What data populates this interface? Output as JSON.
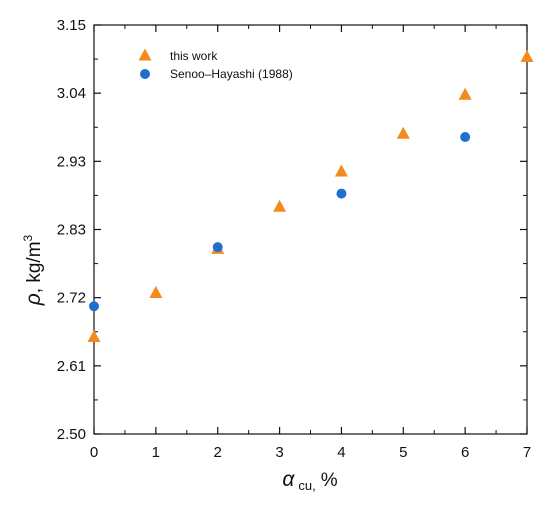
{
  "chart_data": {
    "type": "scatter",
    "xlabel": {
      "symbol": "α",
      "subscript": "cu,",
      "unit": "%"
    },
    "ylabel": {
      "symbol": "ρ",
      "unit_prefix": ", kg/m",
      "superscript": "3"
    },
    "xlim": [
      0,
      7
    ],
    "ylim": [
      2.5,
      3.15
    ],
    "x_ticks": [
      "0",
      "1",
      "2",
      "3",
      "4",
      "5",
      "6",
      "7"
    ],
    "y_ticks": [
      "2.50",
      "2.61",
      "2.72",
      "2.83",
      "2.93",
      "3.04",
      "3.15"
    ],
    "grid": false,
    "legend_position": "top-left",
    "series": [
      {
        "name": "this work",
        "marker": "triangle",
        "color": "#F28A1E",
        "x": [
          0,
          1,
          2,
          3,
          4,
          5,
          6,
          7
        ],
        "y": [
          2.655,
          2.725,
          2.795,
          2.862,
          2.918,
          2.978,
          3.04,
          3.1
        ]
      },
      {
        "name": "Senoo–Hayashi (1988)",
        "marker": "circle",
        "color": "#1F6FD1",
        "x": [
          0,
          2,
          4,
          6
        ],
        "y": [
          2.703,
          2.797,
          2.882,
          2.972
        ]
      }
    ]
  }
}
